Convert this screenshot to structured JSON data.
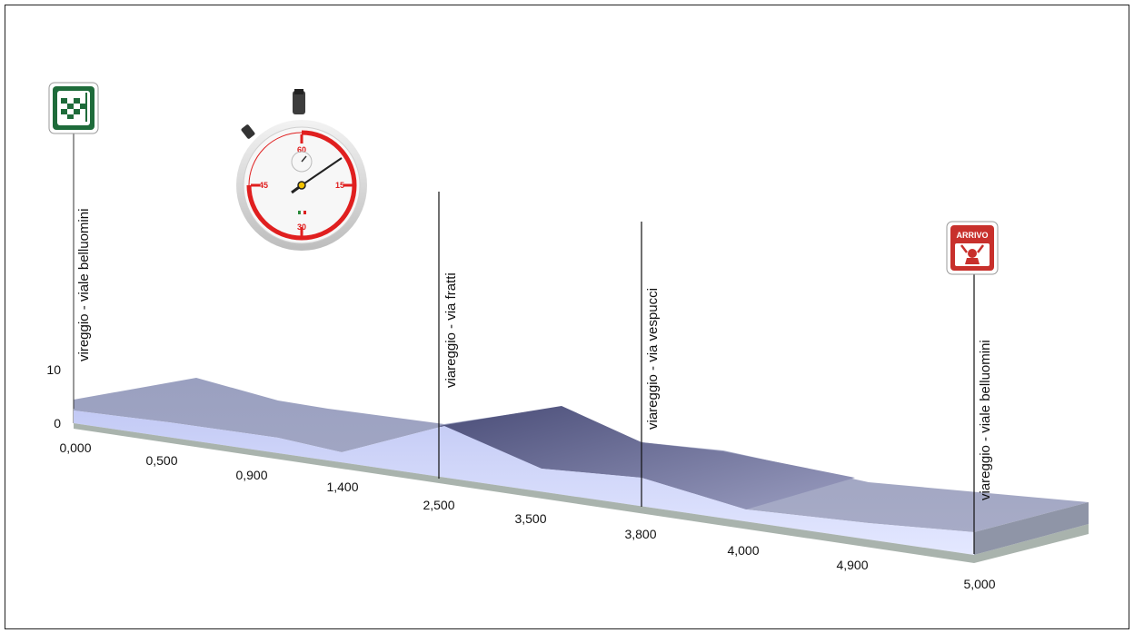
{
  "chart_data": {
    "type": "area",
    "x": [
      "0,000",
      "0,500",
      "0,900",
      "1,400",
      "2,500",
      "3,500",
      "3,800",
      "4,000",
      "4,900",
      "5,000"
    ],
    "elevation": [
      4,
      8,
      4,
      3,
      2,
      7,
      2,
      2,
      1,
      1
    ],
    "ylim": [
      0,
      10
    ],
    "yticks": [
      "0",
      "10"
    ],
    "waypoints": [
      {
        "km": "0,000",
        "label": "vireggio - viale belluomini",
        "icon": "start-flag-icon"
      },
      {
        "km": "2,500",
        "label": "viareggio - via fratti"
      },
      {
        "km": "3,800",
        "label": "viareggio - via vespucci"
      },
      {
        "km": "5,000",
        "label": "viareggio - viale belluomini",
        "icon": "finish-arrivo-icon"
      }
    ],
    "finish_badge": "ARRIVO",
    "stopwatch": {
      "marks": [
        "60",
        "15",
        "30",
        "45"
      ]
    },
    "colors": {
      "profile_top": "#a2a6c2",
      "profile_dark": "#50547c",
      "profile_side": "#d2d8ff",
      "base": "#a9b3ad"
    }
  }
}
